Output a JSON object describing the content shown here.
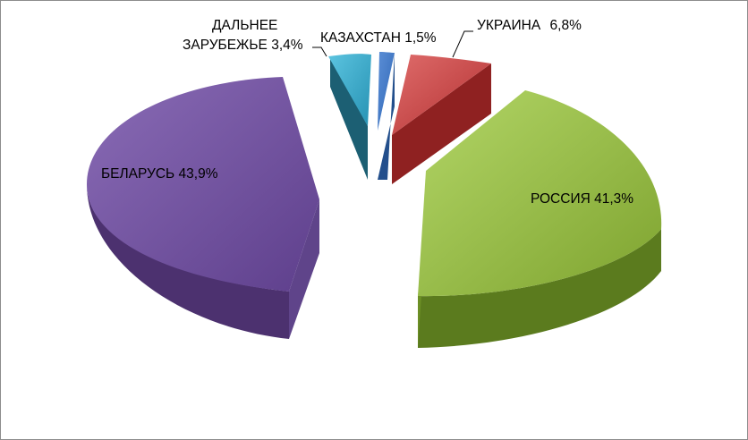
{
  "chart_data": {
    "type": "pie",
    "style": "3d-exploded",
    "legend": "none",
    "slices": [
      {
        "label": "РОССИЯ",
        "value_text": "41,3%",
        "value": 41.3,
        "color": "#8db43c"
      },
      {
        "label": "БЕЛАРУСЬ",
        "value_text": "43,9%",
        "value": 43.9,
        "color": "#6f4e9e"
      },
      {
        "label_lines": [
          "ДАЛЬНЕЕ",
          "ЗАРУБЕЖЬЕ"
        ],
        "value_text": "3,4%",
        "value": 3.4,
        "color": "#2d9fc0"
      },
      {
        "label": "КАЗАХСТАН",
        "value_text": "1,5%",
        "value": 1.5,
        "color": "#3a74c4"
      },
      {
        "label": "УКРАИНА",
        "value_text": "6,8%",
        "value": 6.8,
        "color": "#c0393a"
      }
    ]
  }
}
